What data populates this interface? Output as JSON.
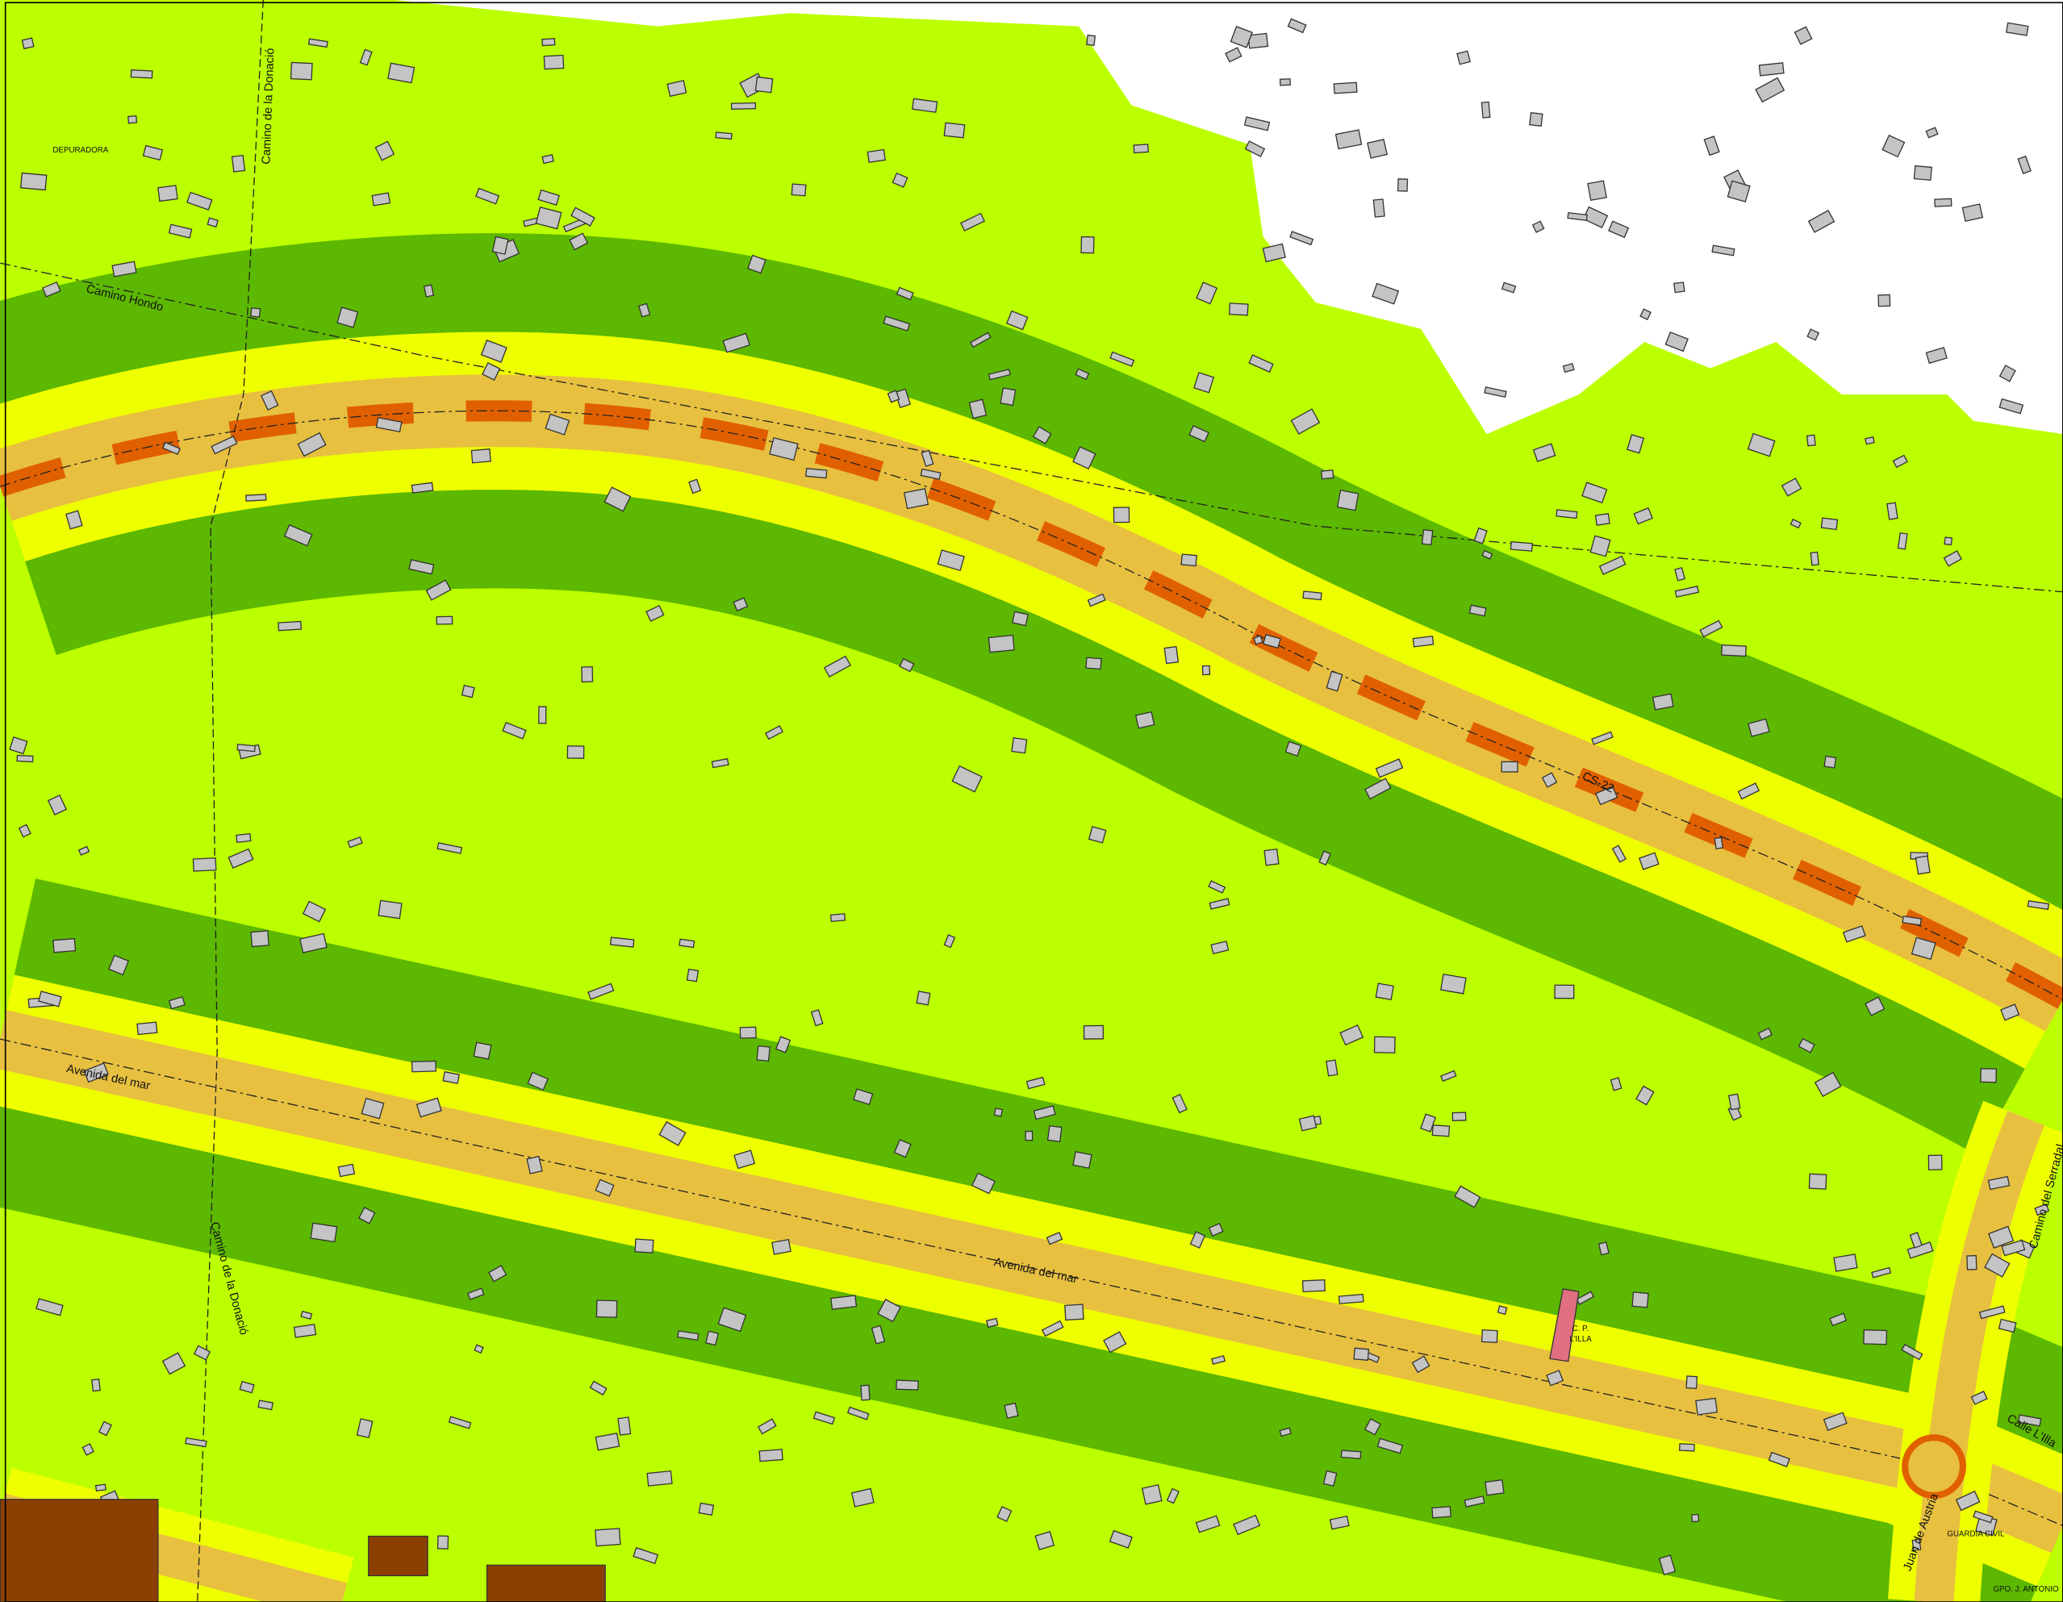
{
  "labels": {
    "depuradora": "DEPURADORA",
    "camino_donacio_top": "Camino de la Donació",
    "camino_hondo": "Camino Hondo",
    "cs22": "CS-22",
    "avenida_1": "Avenida del mar",
    "avenida_2": "Avenida del mar",
    "camino_donacio_bottom": "Camino de la Donació",
    "school_1": "C. P.",
    "school_2": "L'ILLA",
    "calle_lilla": "Calle L'Illa",
    "camino_serradal": "Camino del Serradal",
    "juan_austria": "Juan de Austria",
    "guardia_civil": "GUARDIA CIVIL",
    "gpo": "GPO. J. ANTONIO"
  }
}
